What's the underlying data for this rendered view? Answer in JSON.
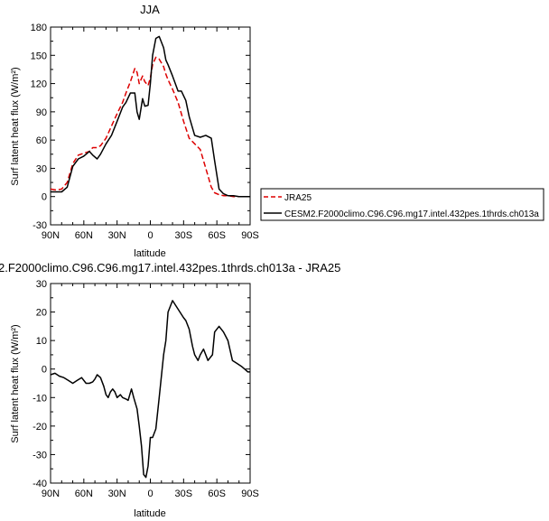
{
  "chart_data": [
    {
      "type": "line",
      "title": "JJA",
      "xlabel": "latitude",
      "ylabel": "Surf latent heat flux (W/m²)",
      "ylim": [
        -30,
        180
      ],
      "yticks": [
        "-30",
        "0",
        "30",
        "60",
        "90",
        "120",
        "150",
        "180"
      ],
      "xticks": [
        "90N",
        "60N",
        "30N",
        "0",
        "30S",
        "60S",
        "90S"
      ],
      "grid": false,
      "legend": "right",
      "series": [
        {
          "name": "JRA25",
          "color": "#dd0000",
          "dash": true,
          "x": [
            90,
            85,
            80,
            75,
            70,
            65,
            60,
            55,
            52,
            48,
            45,
            40,
            35,
            30,
            25,
            22,
            18,
            14,
            12,
            10,
            7,
            5,
            2,
            0,
            -2,
            -5,
            -8,
            -12,
            -14,
            -16,
            -20,
            -25,
            -30,
            -35,
            -40,
            -45,
            -50,
            -55,
            -58,
            -62,
            -66,
            -70,
            -75,
            -80,
            -85,
            -90
          ],
          "values": [
            8,
            7,
            8,
            15,
            35,
            44,
            46,
            48,
            52,
            52,
            54,
            62,
            75,
            88,
            100,
            110,
            122,
            136,
            132,
            120,
            128,
            122,
            118,
            126,
            140,
            148,
            146,
            138,
            130,
            124,
            114,
            100,
            80,
            62,
            56,
            50,
            30,
            10,
            4,
            2,
            1,
            1,
            0,
            0,
            0,
            0
          ]
        },
        {
          "name": "CESM2.F2000climo.C96.C96.mg17.intel.432pes.1thrds.ch013a",
          "color": "#000000",
          "dash": false,
          "x": [
            90,
            85,
            80,
            75,
            70,
            65,
            60,
            55,
            52,
            48,
            45,
            40,
            35,
            30,
            25,
            22,
            18,
            14,
            12,
            10,
            7,
            5,
            2,
            0,
            -2,
            -5,
            -8,
            -12,
            -14,
            -16,
            -20,
            -25,
            -28,
            -32,
            -35,
            -40,
            -45,
            -50,
            -55,
            -58,
            -62,
            -66,
            -70,
            -75,
            -80,
            -85,
            -90
          ],
          "values": [
            5,
            5,
            5,
            10,
            32,
            40,
            43,
            48,
            44,
            40,
            45,
            56,
            65,
            80,
            95,
            100,
            110,
            110,
            90,
            82,
            104,
            96,
            97,
            120,
            150,
            168,
            170,
            158,
            145,
            140,
            128,
            112,
            112,
            102,
            85,
            65,
            63,
            65,
            62,
            38,
            8,
            3,
            1,
            1,
            0,
            0,
            0
          ]
        }
      ]
    },
    {
      "type": "line",
      "title": "2.F2000climo.C96.C96.mg17.intel.432pes.1thrds.ch013a - JRA25",
      "xlabel": "latitude",
      "ylabel": "Surf latent heat flux (W/m²)",
      "ylim": [
        -40,
        30
      ],
      "yticks": [
        "-40",
        "-30",
        "-20",
        "-10",
        "0",
        "10",
        "20",
        "30"
      ],
      "xticks": [
        "90N",
        "60N",
        "30N",
        "0",
        "30S",
        "60S",
        "90S"
      ],
      "grid": false,
      "series": [
        {
          "name": "",
          "color": "#000000",
          "dash": false,
          "x": [
            90,
            86,
            82,
            78,
            74,
            70,
            66,
            62,
            58,
            55,
            52,
            50,
            48,
            45,
            42,
            40,
            38,
            36,
            34,
            32,
            30,
            27,
            25,
            22,
            20,
            17,
            15,
            12,
            10,
            8,
            6,
            4,
            2,
            0,
            -2,
            -5,
            -8,
            -12,
            -14,
            -16,
            -20,
            -25,
            -30,
            -32,
            -35,
            -38,
            -40,
            -43,
            -45,
            -48,
            -52,
            -56,
            -58,
            -62,
            -66,
            -70,
            -74,
            -78,
            -82,
            -85,
            -88,
            -90
          ],
          "values": [
            -2,
            -1.5,
            -2.5,
            -3,
            -4,
            -5,
            -4,
            -3,
            -5,
            -5,
            -4.5,
            -3.5,
            -2,
            -3,
            -6,
            -9,
            -10,
            -8,
            -7,
            -8,
            -10,
            -9,
            -10,
            -10.5,
            -11,
            -7,
            -10,
            -14,
            -20,
            -27,
            -37,
            -38,
            -34,
            -24,
            -24,
            -21,
            -10,
            5,
            10,
            20,
            24,
            21,
            18,
            17,
            14,
            8,
            5,
            3,
            5,
            7,
            3,
            5,
            13,
            15,
            13,
            10,
            3,
            2,
            1,
            0,
            -1,
            -1
          ]
        }
      ]
    }
  ]
}
